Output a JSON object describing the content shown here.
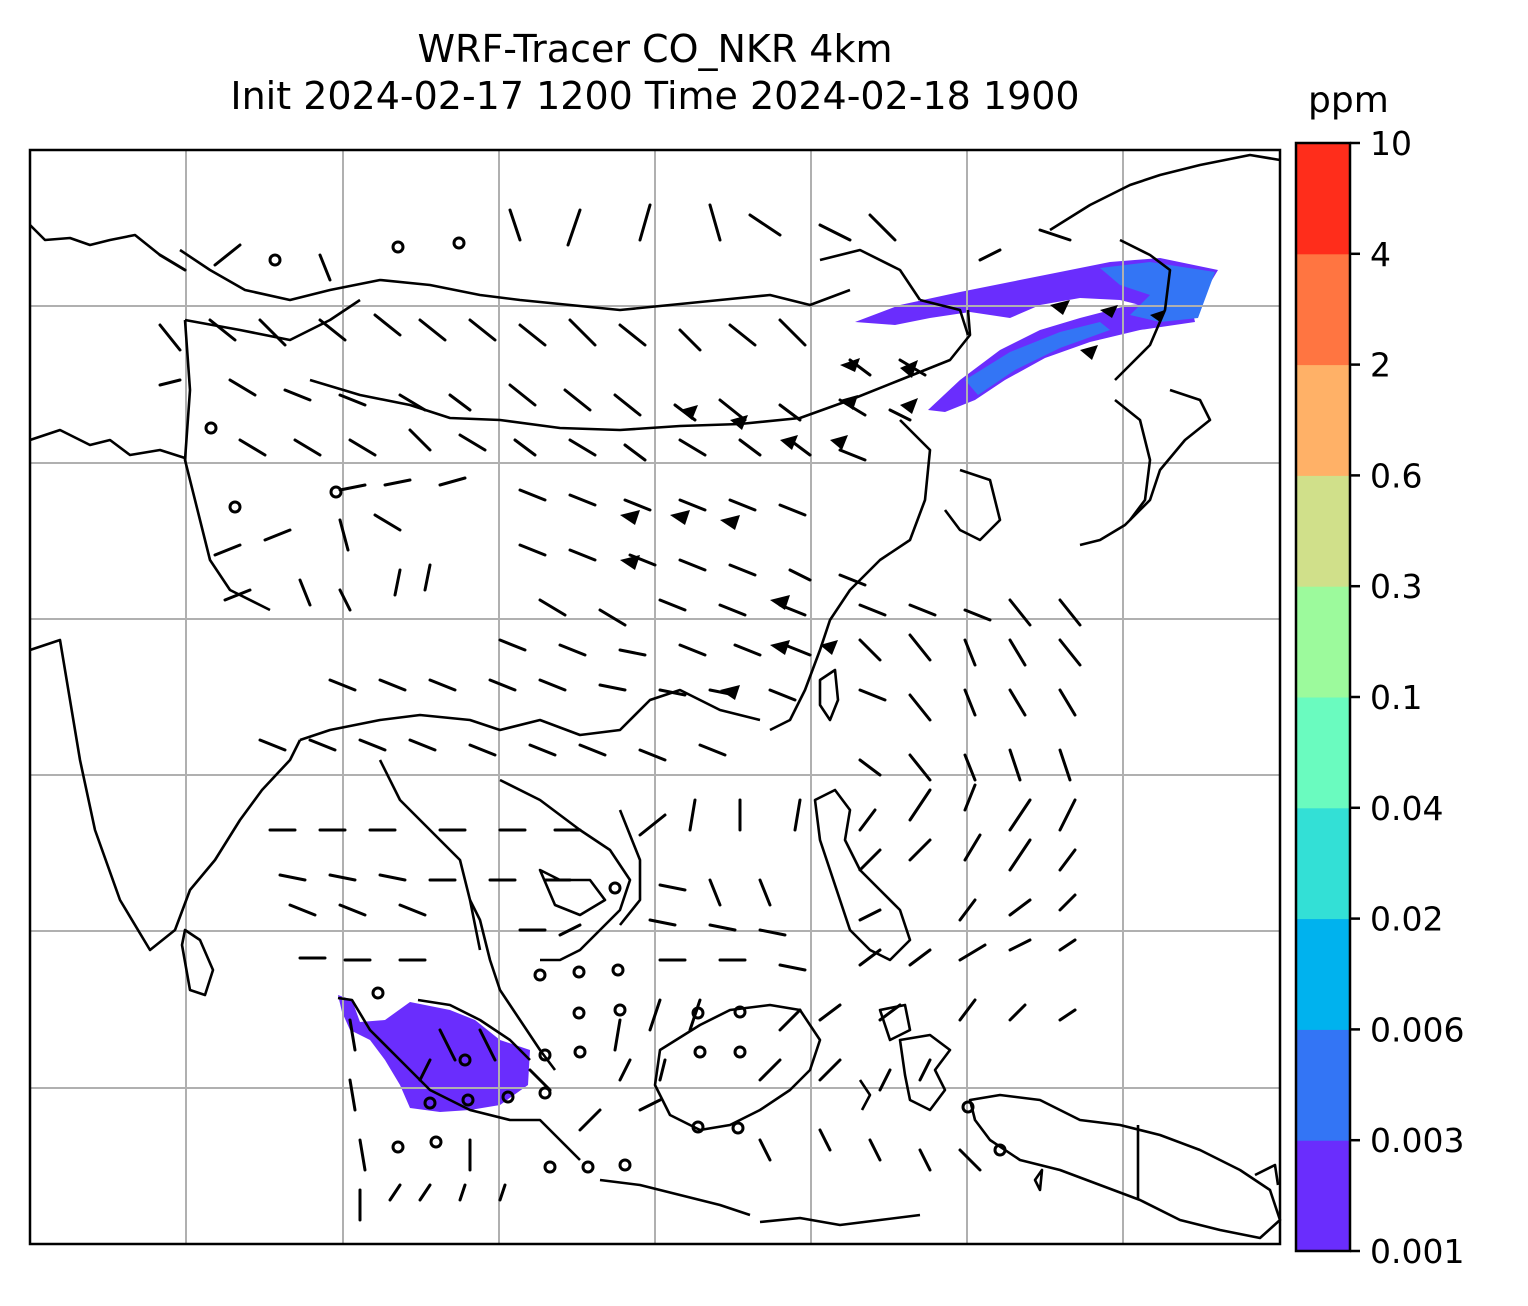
{
  "title": {
    "line1": "WRF-Tracer CO_NKR 4km",
    "line2": "Init 2024-02-17 1200 Time 2024-02-18 1900"
  },
  "colorbar": {
    "unit": "ppm",
    "levels": [
      "0.001",
      "0.003",
      "0.006",
      "0.02",
      "0.04",
      "0.1",
      "0.3",
      "0.6",
      "2",
      "4",
      "10"
    ],
    "colors": [
      "#6a2dfd",
      "#3375f5",
      "#00b2ee",
      "#33e0d6",
      "#6afbbf",
      "#9cfa9c",
      "#d0e08a",
      "#ffb167",
      "#ff7541",
      "#ff2d1b"
    ]
  },
  "map": {
    "gridlines": true,
    "features": [
      "coastlines",
      "country-borders",
      "wind-barbs",
      "tracer-concentration"
    ],
    "plume_color": "#6a2dfd",
    "plume_core_color": "#3375f5"
  }
}
